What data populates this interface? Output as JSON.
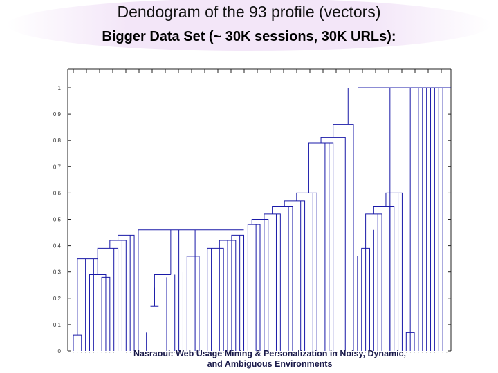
{
  "slide": {
    "title": "Dendogram of the 93 profile (vectors)",
    "subtitle": "Bigger Data Set (~ 30K sessions, 30K URLs):"
  },
  "chart_data": {
    "type": "dendrogram",
    "y_ticks": [
      "0",
      "0.1",
      "0.2",
      "0.3",
      "0.4",
      "0.5",
      "0.6",
      "0.7",
      "0.8",
      "0.9",
      "1"
    ],
    "ylim": [
      0,
      1
    ],
    "leaf_count": 93,
    "tree_color": "#1a1aa8",
    "merge_heights_visible": [
      0.06,
      0.17,
      0.24,
      0.28,
      0.29,
      0.3,
      0.35,
      0.36,
      0.39,
      0.42,
      0.44,
      0.46,
      0.48,
      0.5,
      0.52,
      0.55,
      0.57,
      0.6,
      0.79,
      0.81,
      0.86,
      1.0
    ]
  },
  "footer": {
    "line1": "Nasraoui: Web Usage Mining & Personalization in Noisy, Dynamic,",
    "line2": "and Ambiguous Environments"
  }
}
